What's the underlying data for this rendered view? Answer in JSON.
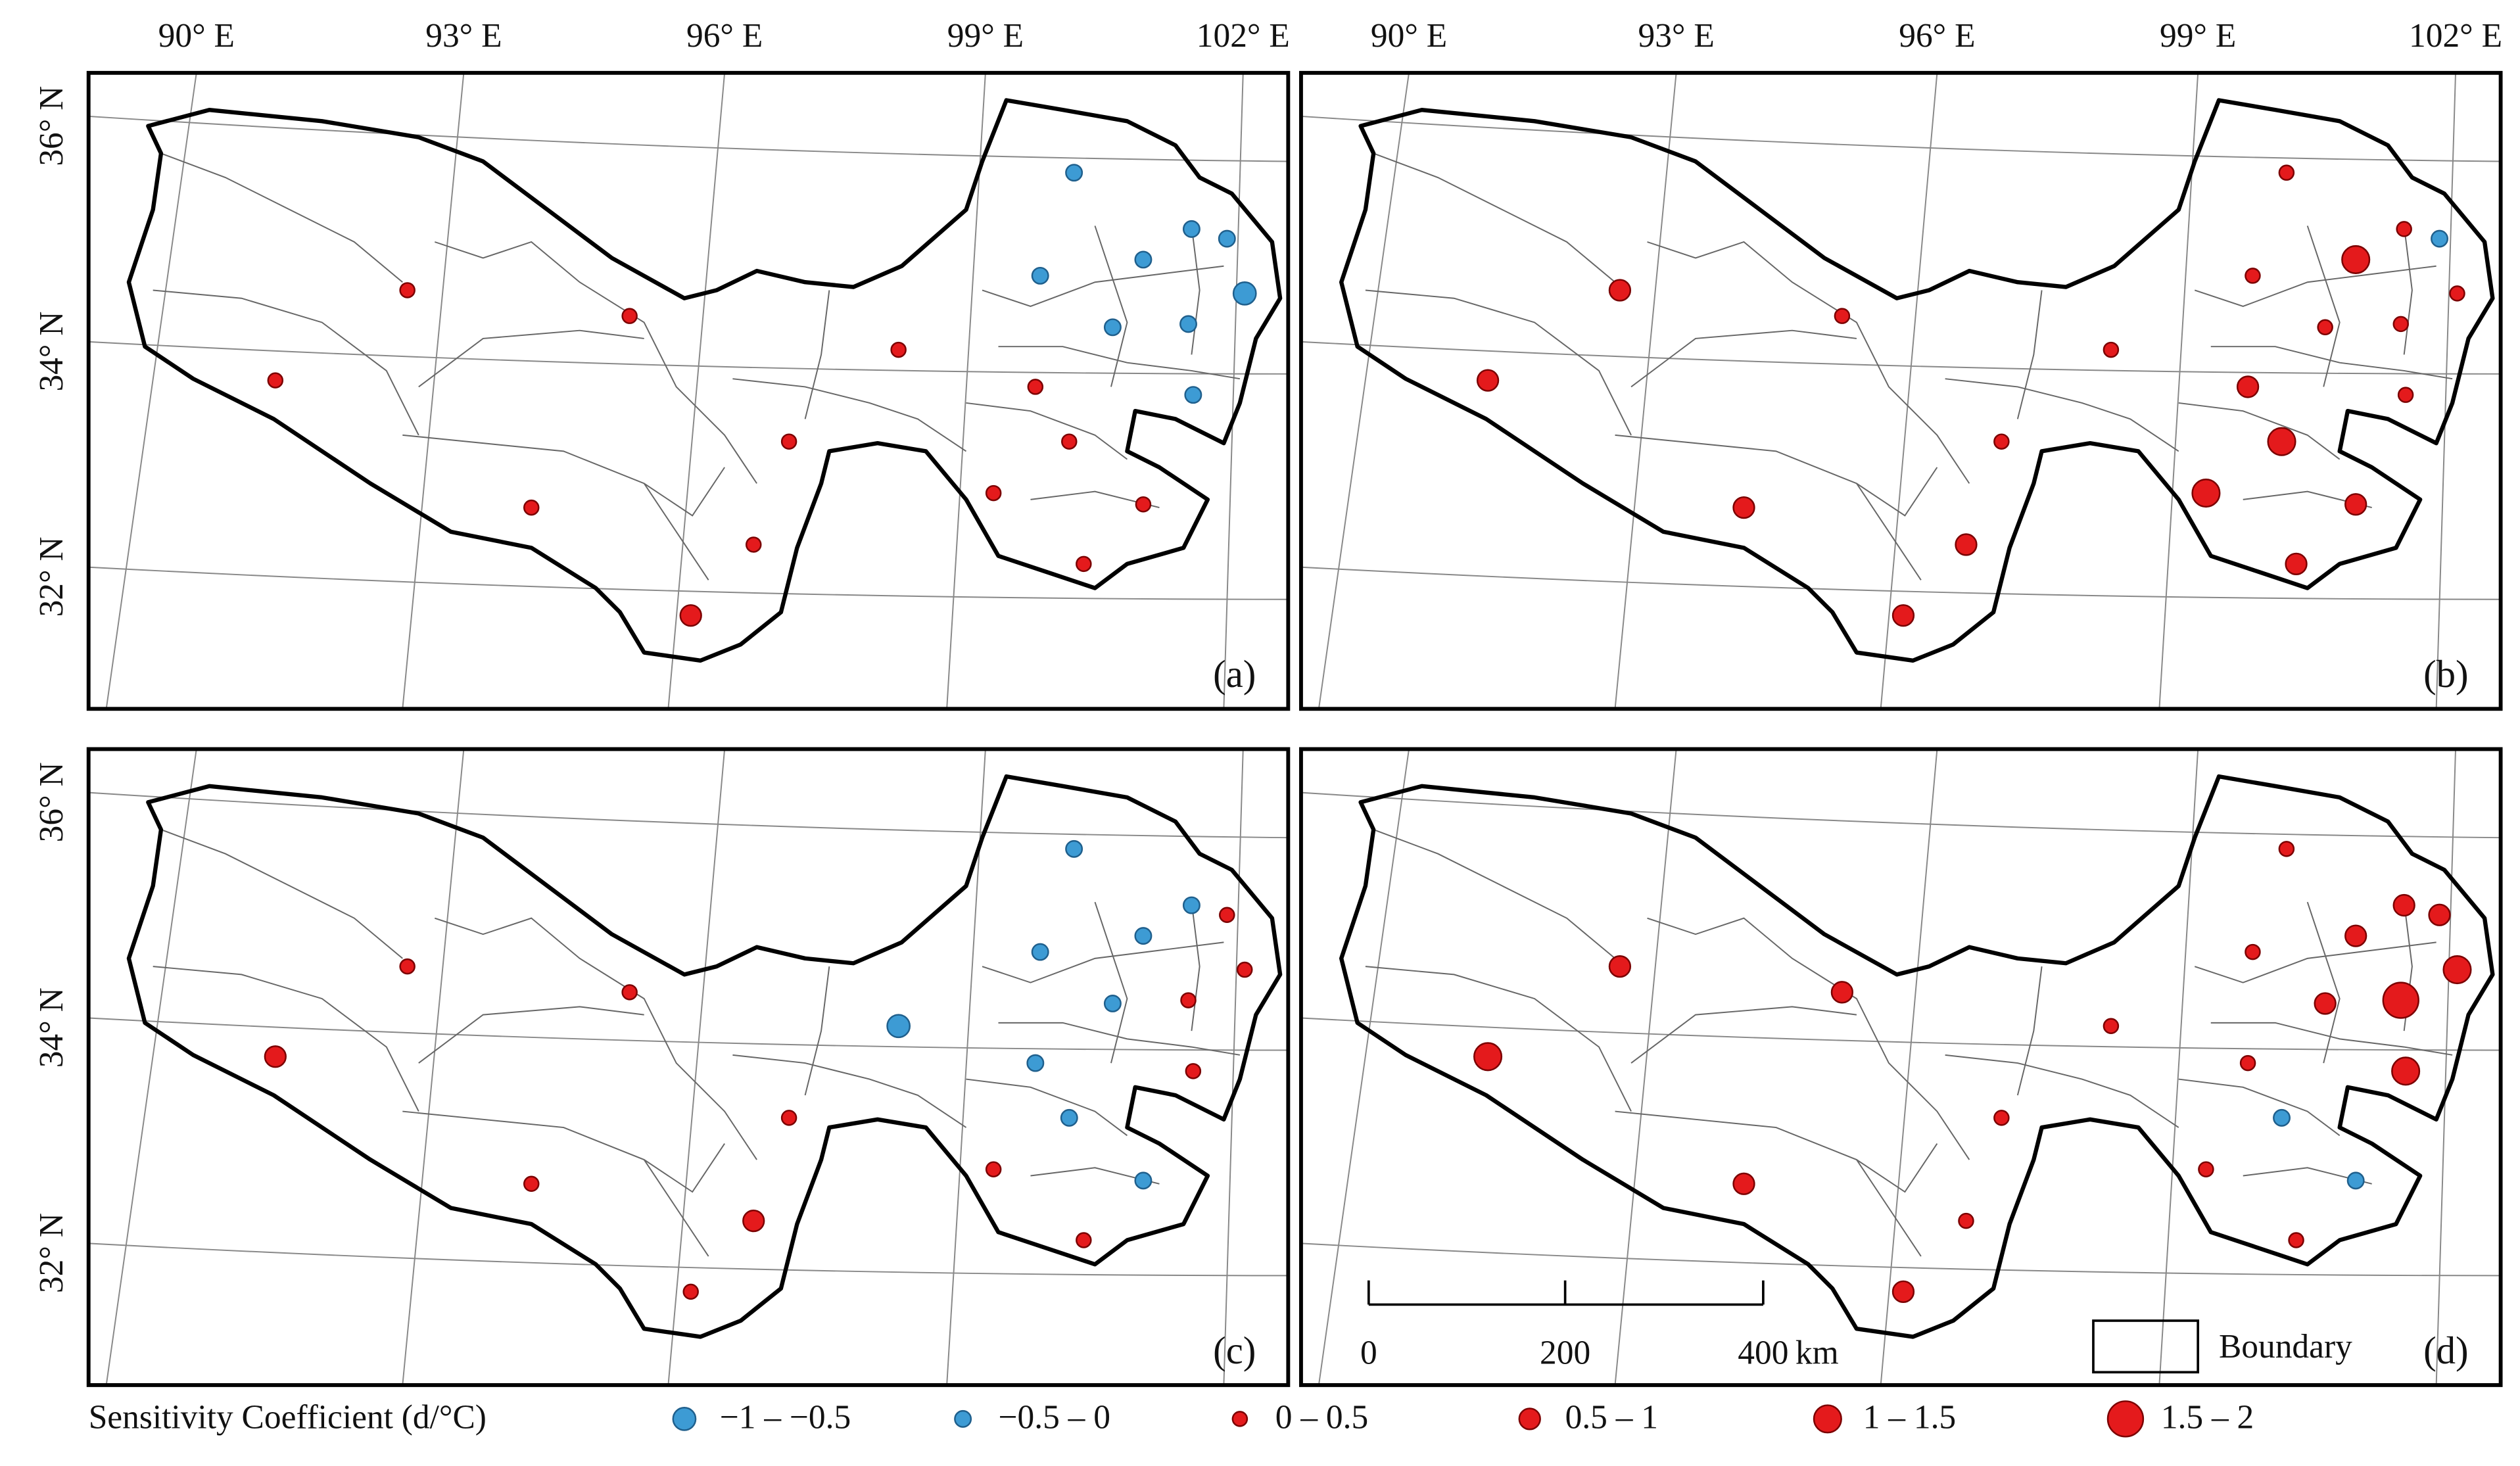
{
  "lon_labels": [
    "90° E",
    "93° E",
    "96° E",
    "99° E",
    "102° E"
  ],
  "lat_labels": [
    "36° N",
    "34° N",
    "32° N"
  ],
  "panels": [
    {
      "label": "(a)",
      "classes": [
        2,
        2,
        2,
        2,
        3,
        2,
        2,
        2,
        1,
        1,
        1,
        1,
        1,
        0,
        1,
        1,
        2,
        1,
        2,
        2,
        2,
        2
      ]
    },
    {
      "label": "(b)",
      "classes": [
        3,
        3,
        2,
        3,
        3,
        3,
        2,
        2,
        2,
        2,
        4,
        2,
        1,
        2,
        2,
        2,
        3,
        2,
        4,
        4,
        3,
        3
      ]
    },
    {
      "label": "(c)",
      "classes": [
        3,
        2,
        2,
        2,
        2,
        3,
        2,
        0,
        1,
        1,
        1,
        1,
        2,
        2,
        1,
        2,
        1,
        2,
        1,
        2,
        1,
        2
      ]
    },
    {
      "label": "(d)",
      "classes": [
        4,
        3,
        3,
        3,
        3,
        2,
        2,
        2,
        2,
        2,
        3,
        3,
        3,
        4,
        3,
        5,
        2,
        4,
        1,
        2,
        1,
        2
      ]
    }
  ],
  "scale_bar": {
    "labels": [
      "0",
      "200",
      "400"
    ],
    "unit": "km"
  },
  "boundary_legend": "Boundary",
  "legend": {
    "title": "Sensitivity Coefficient (d/°C)",
    "classes": [
      "−1 – −0.5",
      "−0.5 – 0",
      "0 – 0.5",
      "0.5 – 1",
      "1 – 1.5",
      "1.5 – 2"
    ]
  }
}
